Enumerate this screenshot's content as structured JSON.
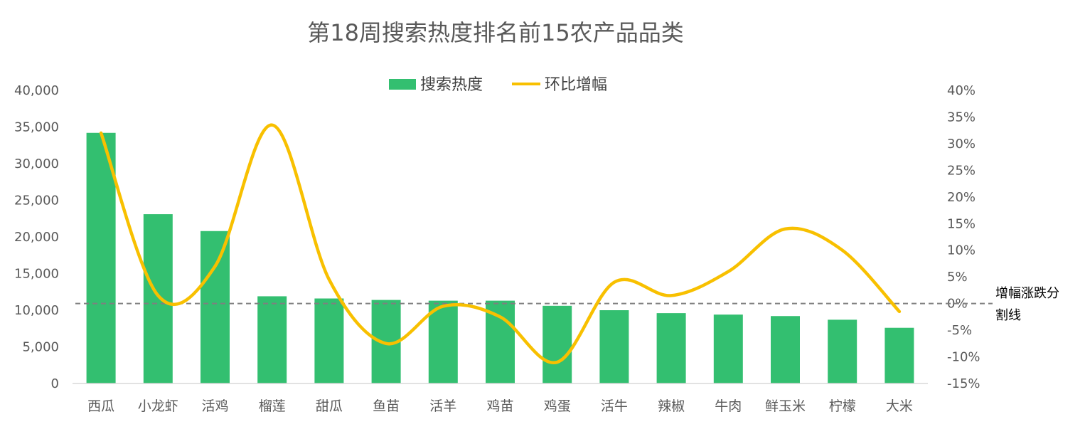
{
  "chart_data": {
    "type": "bar",
    "title": "第18周搜索热度排名前15农产品品类",
    "categories": [
      "西瓜",
      "小龙虾",
      "活鸡",
      "榴莲",
      "甜瓜",
      "鱼苗",
      "活羊",
      "鸡苗",
      "鸡蛋",
      "活牛",
      "辣椒",
      "牛肉",
      "鲜玉米",
      "柠檬",
      "大米"
    ],
    "series": [
      {
        "name": "搜索热度",
        "type": "bar",
        "axis": "left",
        "color": "#33BF70",
        "values": [
          34200,
          23100,
          20800,
          11900,
          11600,
          11400,
          11300,
          11300,
          10600,
          10000,
          9600,
          9400,
          9200,
          8700,
          7600
        ]
      },
      {
        "name": "环比增幅",
        "type": "line",
        "axis": "right",
        "color": "#F8C000",
        "values": [
          32,
          1.5,
          7,
          33.5,
          4.5,
          -7.5,
          -0.5,
          -2.5,
          -11,
          4,
          1.5,
          6,
          14,
          10,
          -1.5
        ]
      }
    ],
    "y_left": {
      "ylim": [
        0,
        40000
      ],
      "ticks": [
        "0",
        "5,000",
        "10,000",
        "15,000",
        "20,000",
        "25,000",
        "30,000",
        "35,000",
        "40,000"
      ]
    },
    "y_right": {
      "ylim": [
        -15,
        40
      ],
      "ticks": [
        "-15%",
        "-10%",
        "-5%",
        "0%",
        "5%",
        "10%",
        "15%",
        "20%",
        "25%",
        "30%",
        "35%",
        "40%"
      ]
    },
    "reference_line": {
      "axis": "right",
      "value": 0,
      "label_lines": [
        "增幅涨跌分",
        "割线"
      ]
    },
    "legend": {
      "position": "top-center"
    },
    "grid": false
  }
}
